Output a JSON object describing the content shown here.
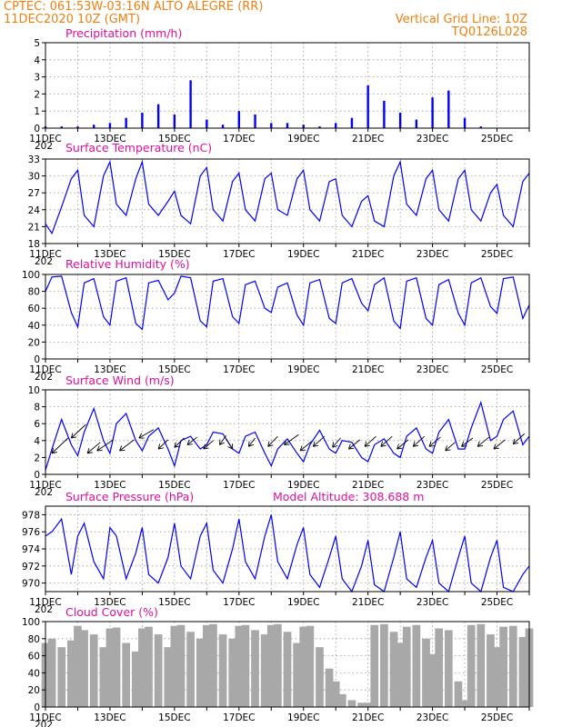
{
  "header": {
    "line1": "CPTEC:   061:53W-03:16N  ALTO ALEGRE (RR)",
    "line2": "11DEC2020 10Z (GMT)",
    "right1": "Vertical Grid Line: 10Z",
    "right2": "TQ0126L028"
  },
  "model_altitude_label": "Model Altitude: 308.688  m",
  "x_tick_labels": [
    "11DEC",
    "13DEC",
    "15DEC",
    "17DEC",
    "19DEC",
    "21DEC",
    "23DEC",
    "25DEC"
  ],
  "year_fragment": "202",
  "chart_data": [
    {
      "id": "precip",
      "type": "bar",
      "title": "Precipitation  (mm/h)",
      "ylim": [
        0,
        5
      ],
      "yticks": [
        0,
        1,
        2,
        3,
        4,
        5
      ],
      "grid": true,
      "color": "#0000ff",
      "x_unit": "hours since 11DEC2020 10Z (day 0 = 11DEC)",
      "x": [
        0,
        1,
        2,
        3,
        4,
        5,
        6,
        7,
        8,
        9,
        10,
        11,
        12,
        13,
        14,
        15,
        16,
        17,
        18,
        19,
        20,
        21,
        22,
        23,
        24,
        25,
        26,
        27
      ],
      "values": [
        0.1,
        0.1,
        0.1,
        0.2,
        0.3,
        0.6,
        0.9,
        1.4,
        0.8,
        2.8,
        0.5,
        0.2,
        1,
        0.8,
        0.3,
        0.3,
        0.2,
        0.1,
        0.3,
        0.6,
        2.5,
        1.6,
        0.9,
        0.5,
        1.8,
        2.2,
        0.6,
        0.1
      ]
    },
    {
      "id": "temp",
      "type": "line",
      "title": "Surface Temperature (nC)",
      "ylim": [
        18,
        33
      ],
      "yticks": [
        18,
        21,
        24,
        27,
        30,
        33
      ],
      "grid": true,
      "color": "#0000ff",
      "x": [
        0.0,
        0.2,
        0.5,
        0.8,
        1.0,
        1.2,
        1.5,
        1.8,
        2.0,
        2.2,
        2.5,
        2.8,
        3.0,
        3.2,
        3.5,
        3.8,
        4.0,
        4.2,
        4.5,
        4.8,
        5.0,
        5.2,
        5.5,
        5.8,
        6.0,
        6.2,
        6.5,
        6.8,
        7.0,
        7.2,
        7.5,
        7.8,
        8.0,
        8.2,
        8.5,
        8.8,
        9.0,
        9.2,
        9.5,
        9.8,
        10.0,
        10.2,
        10.5,
        10.8,
        11.0,
        11.2,
        11.5,
        11.8,
        12.0,
        12.2,
        12.5,
        12.8,
        13.0,
        13.2,
        13.5,
        13.8,
        14.0,
        14.2,
        14.5,
        14.8,
        15.0
      ],
      "values": [
        21.5,
        19.8,
        24.5,
        29.5,
        31,
        23,
        21,
        30,
        32.5,
        25,
        23,
        29.5,
        32.5,
        25,
        23,
        25.5,
        27.3,
        23,
        21.5,
        30,
        31.5,
        24,
        22,
        29,
        30.5,
        24,
        22,
        29.5,
        30.5,
        24,
        23,
        29.5,
        31,
        24,
        22,
        29,
        29.5,
        23,
        21,
        25.5,
        26.5,
        22,
        21,
        30,
        32.5,
        25,
        23,
        29.5,
        31,
        24,
        22,
        29.5,
        31,
        24,
        22,
        27,
        28.5,
        23,
        21,
        29,
        30.5
      ]
    },
    {
      "id": "rh",
      "type": "line",
      "title": "Relative Humidity (%)",
      "ylim": [
        0,
        100
      ],
      "yticks": [
        0,
        20,
        40,
        60,
        80,
        100
      ],
      "grid": true,
      "color": "#0000ff",
      "x": [
        0.0,
        0.2,
        0.5,
        0.8,
        1.0,
        1.2,
        1.5,
        1.8,
        2.0,
        2.2,
        2.5,
        2.8,
        3.0,
        3.2,
        3.5,
        3.8,
        4.0,
        4.2,
        4.5,
        4.8,
        5.0,
        5.2,
        5.5,
        5.8,
        6.0,
        6.2,
        6.5,
        6.8,
        7.0,
        7.2,
        7.5,
        7.8,
        8.0,
        8.2,
        8.5,
        8.8,
        9.0,
        9.2,
        9.5,
        9.8,
        10.0,
        10.2,
        10.5,
        10.8,
        11.0,
        11.2,
        11.5,
        11.8,
        12.0,
        12.2,
        12.5,
        12.8,
        13.0,
        13.2,
        13.5,
        13.8,
        14.0,
        14.2,
        14.5,
        14.8,
        15.0
      ],
      "values": [
        80,
        97,
        98,
        55,
        38,
        90,
        95,
        50,
        40,
        92,
        96,
        42,
        35,
        90,
        93,
        70,
        78,
        98,
        96,
        45,
        38,
        92,
        95,
        50,
        42,
        88,
        92,
        60,
        55,
        85,
        90,
        52,
        40,
        90,
        94,
        48,
        42,
        90,
        95,
        66,
        57,
        88,
        96,
        45,
        36,
        92,
        96,
        48,
        40,
        88,
        94,
        54,
        40,
        90,
        96,
        62,
        54,
        95,
        97,
        48,
        64
      ]
    },
    {
      "id": "wind",
      "type": "line",
      "title": "Surface Wind (m/s)",
      "ylim": [
        0,
        10
      ],
      "yticks": [
        0,
        2,
        4,
        6,
        8,
        10
      ],
      "grid": true,
      "color": "#0000ff",
      "x": [
        0.0,
        0.2,
        0.5,
        0.8,
        1.0,
        1.2,
        1.5,
        1.8,
        2.0,
        2.2,
        2.5,
        2.8,
        3.0,
        3.2,
        3.5,
        3.8,
        4.0,
        4.2,
        4.5,
        4.8,
        5.0,
        5.2,
        5.5,
        5.8,
        6.0,
        6.2,
        6.5,
        6.8,
        7.0,
        7.2,
        7.5,
        7.8,
        8.0,
        8.2,
        8.5,
        8.8,
        9.0,
        9.2,
        9.5,
        9.8,
        10.0,
        10.2,
        10.5,
        10.8,
        11.0,
        11.2,
        11.5,
        11.8,
        12.0,
        12.2,
        12.5,
        12.8,
        13.0,
        13.2,
        13.5,
        13.8,
        14.0,
        14.2,
        14.5,
        14.8,
        15.0
      ],
      "values": [
        0.5,
        3,
        6.5,
        3.5,
        2.2,
        5,
        7.8,
        4,
        2.5,
        6,
        7.2,
        4,
        2.8,
        4.5,
        5.5,
        3,
        1,
        4,
        4.5,
        3,
        3.5,
        5,
        4.8,
        3,
        2.5,
        4.5,
        5,
        2.5,
        1,
        3,
        4.2,
        2.5,
        1.5,
        3.5,
        5.2,
        3,
        2.5,
        4,
        3.8,
        2,
        1.5,
        3.5,
        4.2,
        2.5,
        2,
        4.5,
        5.5,
        3,
        2.5,
        5,
        6.5,
        3,
        3,
        5.5,
        8.5,
        4,
        4.5,
        6.5,
        7.5,
        3.5,
        4.5
      ],
      "arrows": {
        "x": [
          0.2,
          0.8,
          1.3,
          1.6,
          2.3,
          2.9,
          3.5,
          4.0,
          4.4,
          4.9,
          5.4,
          5.8,
          6.3,
          6.9,
          7.4,
          7.9,
          8.3,
          8.9,
          9.4,
          9.9,
          10.4,
          10.9,
          11.4,
          11.9,
          12.4,
          12.9,
          13.4,
          13.9,
          14.5
        ],
        "y": [
          2.5,
          4.3,
          2.5,
          2.8,
          2.8,
          4.3,
          3.0,
          3.2,
          3.5,
          3.0,
          3.5,
          3.0,
          3.3,
          3.3,
          3.5,
          2.8,
          3.3,
          3.2,
          3.0,
          3.3,
          3.3,
          3.0,
          3.3,
          3.3,
          2.8,
          3.3,
          3.3,
          3.0,
          3.6
        ],
        "dx": [
          0.5,
          0.45,
          0.4,
          0.5,
          0.45,
          0.45,
          0.3,
          0.3,
          0.3,
          0.3,
          0.2,
          -0.2,
          0.2,
          0.3,
          0.45,
          0.35,
          0.35,
          0.25,
          0.35,
          0.35,
          0.35,
          0.35,
          0.35,
          0.35,
          0.3,
          0.35,
          0.35,
          0.35,
          0.35
        ],
        "dy": [
          1.8,
          1.6,
          1.3,
          1.3,
          1.3,
          1.0,
          1.1,
          1.1,
          0.9,
          1.0,
          1.1,
          1.2,
          1.0,
          1.2,
          1.2,
          1.1,
          1.2,
          1.1,
          1.1,
          1.2,
          1.2,
          1.1,
          1.2,
          1.1,
          1.0,
          1.0,
          1.1,
          1.1,
          1.2
        ]
      }
    },
    {
      "id": "pressure",
      "type": "line",
      "title": "Surface Pressure (hPa)",
      "ylim": [
        969,
        979
      ],
      "yticks": [
        970,
        972,
        974,
        976,
        978
      ],
      "grid": true,
      "color": "#0000ff",
      "x": [
        0.0,
        0.2,
        0.5,
        0.8,
        1.0,
        1.2,
        1.5,
        1.8,
        2.0,
        2.2,
        2.5,
        2.8,
        3.0,
        3.2,
        3.5,
        3.8,
        4.0,
        4.2,
        4.5,
        4.8,
        5.0,
        5.2,
        5.5,
        5.8,
        6.0,
        6.2,
        6.5,
        6.8,
        7.0,
        7.2,
        7.5,
        7.8,
        8.0,
        8.2,
        8.5,
        8.8,
        9.0,
        9.2,
        9.5,
        9.8,
        10.0,
        10.2,
        10.5,
        10.8,
        11.0,
        11.2,
        11.5,
        11.8,
        12.0,
        12.2,
        12.5,
        12.8,
        13.0,
        13.2,
        13.5,
        13.8,
        14.0,
        14.2,
        14.5,
        14.8,
        15.0
      ],
      "values": [
        975.5,
        976,
        977.5,
        971,
        975.5,
        977,
        972.5,
        970.5,
        976.5,
        975.5,
        970.5,
        973.5,
        976.5,
        971,
        970,
        973,
        977,
        972,
        970.5,
        975.5,
        977,
        971.5,
        970,
        974,
        977.5,
        972.5,
        970.5,
        975.5,
        978,
        972.5,
        970.5,
        974.5,
        976.5,
        971,
        969.5,
        973,
        975.5,
        970.5,
        969,
        972,
        975,
        969.8,
        969,
        973,
        976,
        970.5,
        969.5,
        973,
        975,
        970,
        969,
        973,
        975.5,
        970,
        969,
        973,
        975,
        969.5,
        969,
        971,
        972
      ]
    },
    {
      "id": "cloud",
      "type": "bar",
      "title": "Cloud Cover (%)",
      "ylim": [
        0,
        100
      ],
      "yticks": [
        0,
        20,
        40,
        60,
        80,
        100
      ],
      "grid": true,
      "color": "#a8a8a8",
      "x": [
        0.0,
        0.2,
        0.5,
        0.8,
        1.0,
        1.2,
        1.5,
        1.8,
        2.0,
        2.2,
        2.5,
        2.8,
        3.0,
        3.2,
        3.5,
        3.8,
        4.0,
        4.2,
        4.5,
        4.8,
        5.0,
        5.2,
        5.5,
        5.8,
        6.0,
        6.2,
        6.5,
        6.8,
        7.0,
        7.2,
        7.5,
        7.8,
        8.0,
        8.2,
        8.5,
        8.8,
        9.0,
        9.2,
        9.5,
        9.8,
        10.0,
        10.2,
        10.5,
        10.8,
        11.0,
        11.2,
        11.5,
        11.8,
        12.0,
        12.2,
        12.5,
        12.8,
        13.0,
        13.2,
        13.5,
        13.8,
        14.0,
        14.2,
        14.5,
        14.8,
        15.0
      ],
      "values": [
        75,
        80,
        70,
        78,
        95,
        90,
        85,
        70,
        92,
        93,
        75,
        65,
        92,
        94,
        85,
        70,
        95,
        96,
        88,
        80,
        96,
        97,
        85,
        80,
        95,
        96,
        90,
        85,
        96,
        97,
        88,
        75,
        94,
        95,
        70,
        45,
        30,
        15,
        8,
        5,
        5,
        96,
        97,
        88,
        75,
        94,
        96,
        80,
        62,
        92,
        90,
        30,
        8,
        96,
        97,
        85,
        70,
        94,
        95,
        82,
        92
      ]
    }
  ]
}
